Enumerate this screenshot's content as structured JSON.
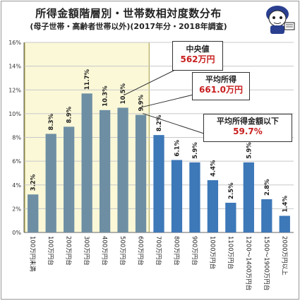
{
  "header": {
    "title": "所得金額階層別・世帯数相対度数分布",
    "subtitle": "(母子世帯・高齢者世帯以外)(2017年分・2018年調査)"
  },
  "mascot": {
    "icon": "mascot-character-icon"
  },
  "callouts": {
    "median": {
      "label": "中央値",
      "value": "562万円"
    },
    "mean": {
      "label": "平均所得",
      "value": "661.0万円"
    },
    "below_mean": {
      "label": "平均所得金額以下",
      "value": "59.7%"
    }
  },
  "chart_data": {
    "type": "bar",
    "categories": [
      "100万円未満",
      "100万円台",
      "200万円台",
      "300万円台",
      "400万円台",
      "500万円台",
      "600万円台",
      "700万円台",
      "800万円台",
      "900万円台",
      "1000万円台",
      "1100万円台",
      "1200～1400万円台",
      "1500～1900万円台",
      "2000万円以上"
    ],
    "values": [
      3.2,
      8.3,
      8.9,
      11.7,
      10.3,
      10.5,
      9.9,
      8.2,
      6.1,
      5.9,
      4.4,
      2.5,
      5.9,
      2.8,
      1.4
    ],
    "data_labels": [
      "3.2%",
      "8.3%",
      "8.9%",
      "11.7%",
      "10.3%",
      "10.5%",
      "9.9%",
      "8.2%",
      "6.1%",
      "5.9%",
      "4.4%",
      "2.5%",
      "5.9%",
      "2.8%",
      "1.4%"
    ],
    "y_ticks": [
      "0%",
      "2%",
      "4%",
      "6%",
      "8%",
      "10%",
      "12%",
      "14%",
      "16%"
    ],
    "ylim": [
      0,
      16
    ],
    "grid": true,
    "highlight_range": [
      "100万円未満",
      "600万円台"
    ],
    "colors": {
      "bar_highlight": "#6e8fa3",
      "bar_other": "#3d78b8",
      "highlight_bg": "#fbf8d8",
      "highlight_border": "#a09a3a",
      "grid": "#c8c8c8",
      "accent_value": "#c81e1e"
    }
  }
}
